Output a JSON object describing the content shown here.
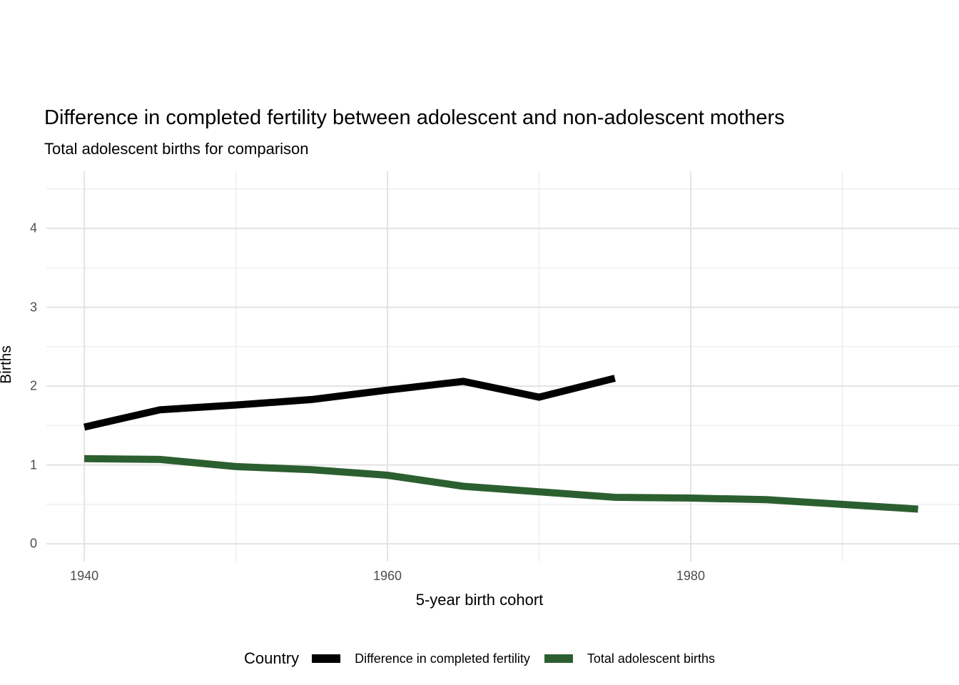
{
  "title": "Difference in completed fertility between adolescent and non-adolescent mothers",
  "subtitle": "Total adolescent births for comparison",
  "chart_data": {
    "type": "line",
    "title": "Difference in completed fertility between adolescent and non-adolescent mothers",
    "subtitle": "Total adolescent births for comparison",
    "xlabel": "5-year birth cohort",
    "ylabel": "Births",
    "legend_title": "Country",
    "legend_position": "bottom",
    "grid": "major+minor",
    "background": "#ffffff",
    "xlim": [
      1937.5,
      1997.7
    ],
    "ylim": [
      -0.225,
      4.725
    ],
    "x_ticks": [
      1940,
      1960,
      1980
    ],
    "x_minor_ticks": [
      1950,
      1970,
      1990
    ],
    "y_ticks": [
      0,
      1,
      2,
      3,
      4
    ],
    "y_minor_ticks": [
      0.5,
      1.5,
      2.5,
      3.5,
      4.5
    ],
    "tick_label_color": "#4d4d4d",
    "major_grid_color": "#e3e3e3",
    "minor_grid_color": "#ebebeb",
    "line_width": 10,
    "series": [
      {
        "name": "Difference in completed fertility",
        "color": "#000000",
        "x": [
          1940,
          1945,
          1950,
          1955,
          1960,
          1965,
          1970,
          1975
        ],
        "values": [
          1.48,
          1.7,
          1.76,
          1.83,
          1.95,
          2.06,
          1.86,
          2.1
        ]
      },
      {
        "name": "Total adolescent births",
        "color": "#2c5f30",
        "x": [
          1940,
          1945,
          1950,
          1955,
          1960,
          1965,
          1970,
          1975,
          1980,
          1985,
          1990,
          1995
        ],
        "values": [
          1.08,
          1.07,
          0.98,
          0.94,
          0.87,
          0.73,
          0.66,
          0.59,
          0.58,
          0.56,
          0.5,
          0.44
        ]
      }
    ]
  }
}
